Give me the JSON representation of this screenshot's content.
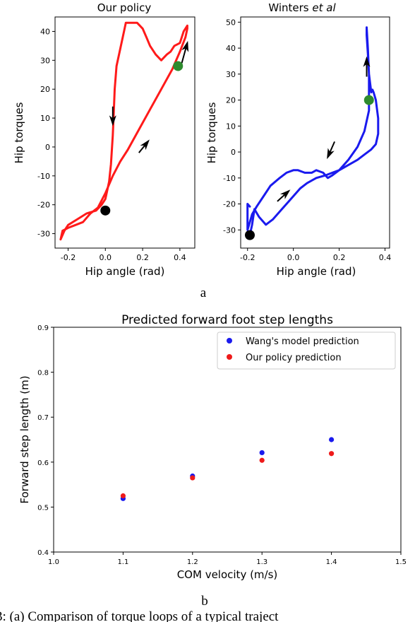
{
  "chart_data": [
    {
      "type": "line",
      "title": "Our policy",
      "xlabel": "Hip angle (rad)",
      "ylabel": "Hip torques",
      "xlim": [
        -0.27,
        0.48
      ],
      "ylim": [
        -35,
        45
      ],
      "xticks": [
        "-0.2",
        "0.0",
        "0.2",
        "0.4"
      ],
      "yticks": [
        "-30",
        "-20",
        "-10",
        "0",
        "10",
        "20",
        "30",
        "40"
      ],
      "series_color": "#ff1a1a",
      "x": [
        -0.24,
        -0.23,
        -0.2,
        -0.16,
        -0.12,
        -0.08,
        -0.04,
        0.0,
        0.04,
        0.08,
        0.12,
        0.18,
        0.24,
        0.3,
        0.36,
        0.4,
        0.43,
        0.44,
        0.44,
        0.42,
        0.4,
        0.37,
        0.35,
        0.33,
        0.3,
        0.27,
        0.24,
        0.22,
        0.2,
        0.17,
        0.14,
        0.11,
        0.1,
        0.08,
        0.06,
        0.05,
        0.045,
        0.04,
        0.03,
        0.02,
        0.0,
        -0.02,
        -0.05,
        -0.1,
        -0.15,
        -0.2,
        -0.22,
        -0.24
      ],
      "y": [
        -32,
        -29,
        -28,
        -27,
        -26,
        -23,
        -21,
        -16,
        -10,
        -5,
        -1,
        6,
        13,
        20,
        27,
        33,
        38,
        41,
        42,
        40,
        36,
        35,
        33,
        32,
        30,
        32,
        35,
        38,
        41,
        43,
        43,
        43,
        40,
        34,
        28,
        20,
        12,
        4,
        -6,
        -12,
        -18,
        -20,
        -22,
        -23,
        -25,
        -27,
        -29,
        -32
      ],
      "markers": [
        {
          "x": 0.0,
          "y": -22,
          "color": "#000000"
        },
        {
          "x": 0.39,
          "y": 28,
          "color": "#2e8b2e"
        }
      ],
      "arrows": [
        {
          "x": 0.04,
          "y": 14,
          "dx": 0,
          "dy": -6
        },
        {
          "x": 0.18,
          "y": -2,
          "dx": 0.05,
          "dy": 4
        },
        {
          "x": 0.41,
          "y": 29,
          "dx": 0.03,
          "dy": 7
        }
      ]
    },
    {
      "type": "line",
      "title": "Winters",
      "title_italic": "et al",
      "xlabel": "Hip angle (rad)",
      "ylabel": "Hip torques",
      "xlim": [
        -0.23,
        0.42
      ],
      "ylim": [
        -37,
        52
      ],
      "xticks": [
        "-0.2",
        "0.0",
        "0.2",
        "0.4"
      ],
      "yticks": [
        "-30",
        "-20",
        "-10",
        "0",
        "10",
        "20",
        "30",
        "40",
        "50"
      ],
      "series_color": "#1a1aee",
      "x": [
        -0.19,
        -0.18,
        -0.17,
        -0.15,
        -0.12,
        -0.09,
        -0.05,
        -0.02,
        0.0,
        0.03,
        0.06,
        0.1,
        0.14,
        0.17,
        0.2,
        0.24,
        0.28,
        0.31,
        0.34,
        0.36,
        0.37,
        0.37,
        0.36,
        0.35,
        0.345,
        0.34,
        0.33,
        0.325,
        0.32,
        0.32,
        0.325,
        0.33,
        0.33,
        0.33,
        0.31,
        0.28,
        0.24,
        0.2,
        0.17,
        0.15,
        0.13,
        0.1,
        0.08,
        0.05,
        0.02,
        0.0,
        -0.03,
        -0.06,
        -0.1,
        -0.13,
        -0.16,
        -0.18,
        -0.19,
        -0.2,
        -0.2,
        -0.19
      ],
      "y": [
        -32,
        -28,
        -22,
        -25,
        -28,
        -26,
        -22,
        -19,
        -17,
        -14,
        -12,
        -10,
        -9,
        -8,
        -7,
        -5,
        -3,
        -1,
        1,
        3,
        7,
        13,
        20,
        23,
        24,
        23,
        30,
        40,
        48,
        45,
        38,
        30,
        22,
        16,
        8,
        2,
        -3,
        -7,
        -9,
        -10,
        -8,
        -7,
        -8,
        -8,
        -7,
        -7,
        -8,
        -10,
        -13,
        -17,
        -21,
        -24,
        -27,
        -30,
        -20,
        -21
      ],
      "markers": [
        {
          "x": -0.19,
          "y": -32,
          "color": "#000000"
        },
        {
          "x": 0.33,
          "y": 20,
          "color": "#2e8b2e"
        }
      ],
      "arrows": [
        {
          "x": 0.32,
          "y": 29,
          "dx": 0,
          "dy": 7
        },
        {
          "x": 0.18,
          "y": 4,
          "dx": -0.03,
          "dy": -6
        },
        {
          "x": -0.07,
          "y": -19,
          "dx": 0.05,
          "dy": 4
        }
      ]
    },
    {
      "type": "scatter",
      "title": "Predicted forward foot step lengths",
      "xlabel": "COM velocity (m/s)",
      "ylabel": "Forward step length (m)",
      "xlim": [
        1.0,
        1.5
      ],
      "ylim": [
        0.4,
        0.9
      ],
      "xticks": [
        "1.0",
        "1.1",
        "1.2",
        "1.3",
        "1.4",
        "1.5"
      ],
      "yticks": [
        "0.4",
        "0.5",
        "0.6",
        "0.7",
        "0.8",
        "0.9"
      ],
      "legend_position": "top-right",
      "series": [
        {
          "name": "Wang's model prediction",
          "color": "#1a1aee",
          "x": [
            1.1,
            1.2,
            1.3,
            1.4
          ],
          "y": [
            0.519,
            0.569,
            0.621,
            0.65
          ]
        },
        {
          "name": "Our policy prediction",
          "color": "#ee1a1a",
          "x": [
            1.1,
            1.2,
            1.3,
            1.4
          ],
          "y": [
            0.525,
            0.565,
            0.604,
            0.619
          ]
        }
      ]
    }
  ],
  "captions": {
    "a": "a",
    "b": "b",
    "figure": "3: (a) Comparison of torque loops of a typical traject"
  }
}
